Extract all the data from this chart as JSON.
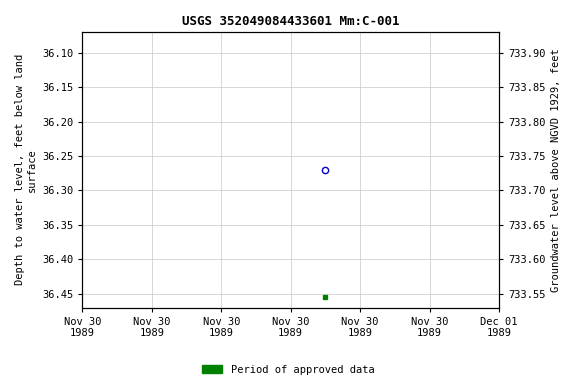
{
  "title": "USGS 352049084433601 Mm:C-001",
  "ylabel_left": "Depth to water level, feet below land\nsurface",
  "ylabel_right": "Groundwater level above NGVD 1929, feet",
  "ylim_left": [
    36.47,
    36.07
  ],
  "ylim_right": [
    733.53,
    733.93
  ],
  "yticks_left": [
    36.1,
    36.15,
    36.2,
    36.25,
    36.3,
    36.35,
    36.4,
    36.45
  ],
  "yticks_right": [
    733.9,
    733.85,
    733.8,
    733.75,
    733.7,
    733.65,
    733.6,
    733.55
  ],
  "blue_point_x": 3.5,
  "blue_point_y": 36.27,
  "green_point_x": 3.5,
  "green_point_y": 36.455,
  "xlim": [
    0,
    6
  ],
  "xtick_positions": [
    0,
    1,
    2,
    3,
    4,
    5,
    6
  ],
  "xtick_labels": [
    "Nov 30\n1989",
    "Nov 30\n1989",
    "Nov 30\n1989",
    "Nov 30\n1989",
    "Nov 30\n1989",
    "Nov 30\n1989",
    "Dec 01\n1989"
  ],
  "legend_label": "Period of approved data",
  "legend_color": "#008000",
  "background_color": "#ffffff",
  "grid_color": "#c8c8c8",
  "title_fontsize": 9,
  "label_fontsize": 7.5,
  "tick_fontsize": 7.5,
  "fig_width": 5.76,
  "fig_height": 3.84
}
